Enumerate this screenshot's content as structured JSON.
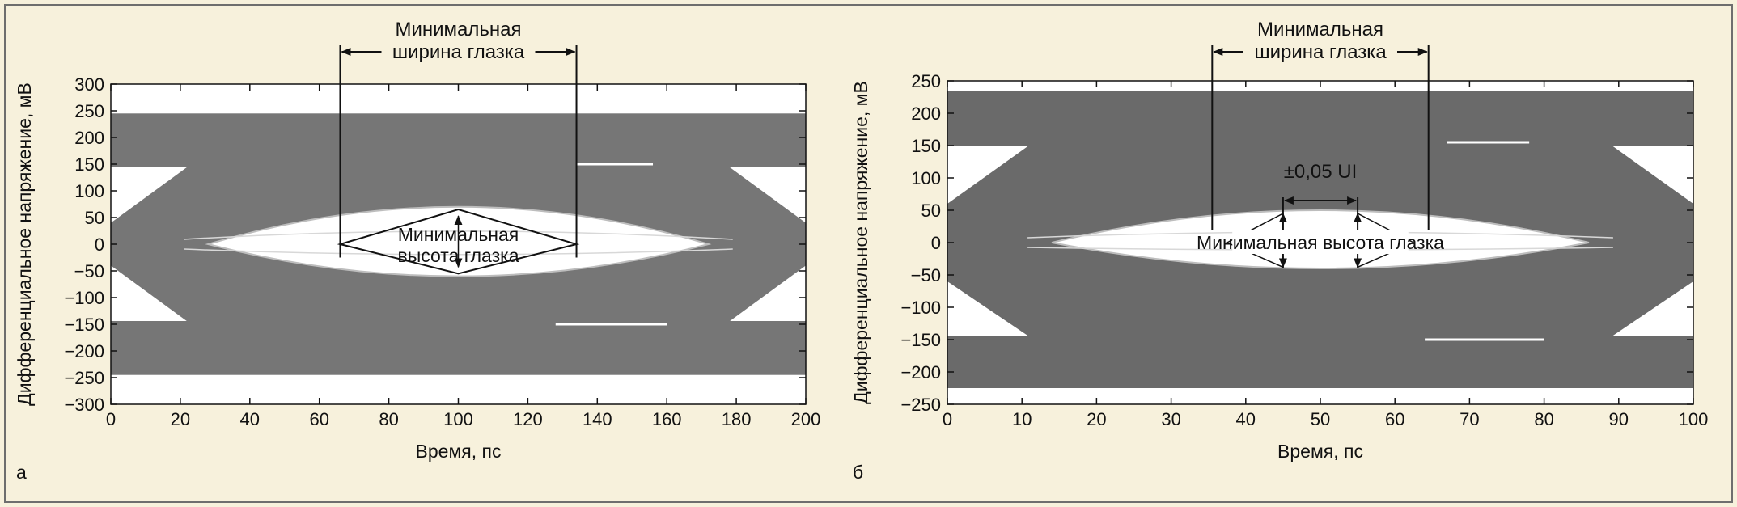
{
  "chart_data": [
    {
      "type": "line",
      "panel_label": "а",
      "xlabel": "Время, пс",
      "ylabel": "Дифференциальное напряжение, мВ",
      "xlim": [
        0,
        200
      ],
      "ylim": [
        -300,
        300
      ],
      "xticks": [
        "0",
        "20",
        "40",
        "60",
        "80",
        "100",
        "120",
        "140",
        "160",
        "180",
        "200"
      ],
      "yticks": [
        "300",
        "250",
        "200",
        "150",
        "100",
        "50",
        "0",
        "−50",
        "−100",
        "−150",
        "−200",
        "−250",
        "−300"
      ],
      "eye": {
        "levels_outer": [
          245,
          -245
        ],
        "levels_inner": [
          150,
          -150
        ],
        "eye_center_x": 100,
        "eye_left_x": 28,
        "eye_right_x": 172,
        "eye_top": 70,
        "eye_bottom": -60,
        "cross_left_x": 0,
        "cross_right_x": 200,
        "band_half": 40,
        "color": "#767676"
      },
      "annotations": {
        "width_label": [
          "Минимальная",
          "ширина глазка"
        ],
        "width_markers_x": [
          66,
          134
        ],
        "height_label": [
          "Минимальная",
          "высота глазка"
        ],
        "height_marker_y": [
          65,
          -55
        ]
      }
    },
    {
      "type": "line",
      "panel_label": "б",
      "xlabel": "Время, пс",
      "ylabel": "Дифференциальное напряжение, мВ",
      "xlim": [
        0,
        100
      ],
      "ylim": [
        -250,
        250
      ],
      "xticks": [
        "0",
        "10",
        "20",
        "30",
        "40",
        "50",
        "60",
        "70",
        "80",
        "90",
        "100"
      ],
      "yticks": [
        "250",
        "200",
        "150",
        "100",
        "50",
        "0",
        "−50",
        "−100",
        "−150",
        "−200",
        "−250"
      ],
      "eye": {
        "levels_outer": [
          235,
          -225
        ],
        "levels_inner": [
          155,
          -150
        ],
        "eye_center_x": 50,
        "eye_left_x": 14,
        "eye_right_x": 86,
        "eye_top": 50,
        "eye_bottom": -40,
        "cross_left_x": 0,
        "cross_right_x": 100,
        "band_half": 60,
        "color": "#6a6a6a"
      },
      "annotations": {
        "width_label": [
          "Минимальная",
          "ширина глазка"
        ],
        "width_markers_x": [
          35.5,
          64.5
        ],
        "ui_label": "±0,05 UI",
        "ui_markers_x": [
          45,
          55
        ],
        "height_label": "Минимальная высота глазка"
      }
    }
  ]
}
